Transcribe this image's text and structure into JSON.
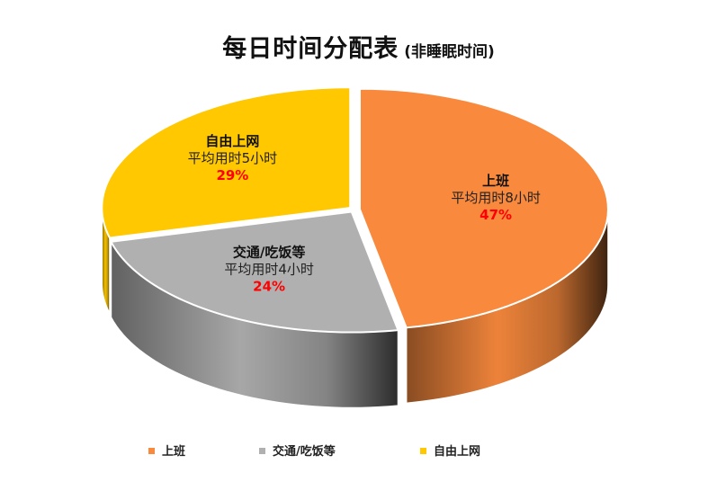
{
  "chart_data": {
    "type": "pie",
    "title": "每日时间分配表",
    "subtitle": "(非睡眠时间)",
    "slices": [
      {
        "name": "上班",
        "detail": "平均用时8小时",
        "label": "47%",
        "value": 47,
        "color": "#F98A3D"
      },
      {
        "name": "交通/吃饭等",
        "detail": "平均用时4小时",
        "label": "24%",
        "value": 24,
        "color": "#B0B0B0"
      },
      {
        "name": "自由上网",
        "detail": "平均用时5小时",
        "label": "29%",
        "value": 29,
        "color": "#FFC800"
      }
    ],
    "legend": {
      "position": "bottom"
    }
  },
  "colors": {
    "percent_text": "#FF0000"
  }
}
